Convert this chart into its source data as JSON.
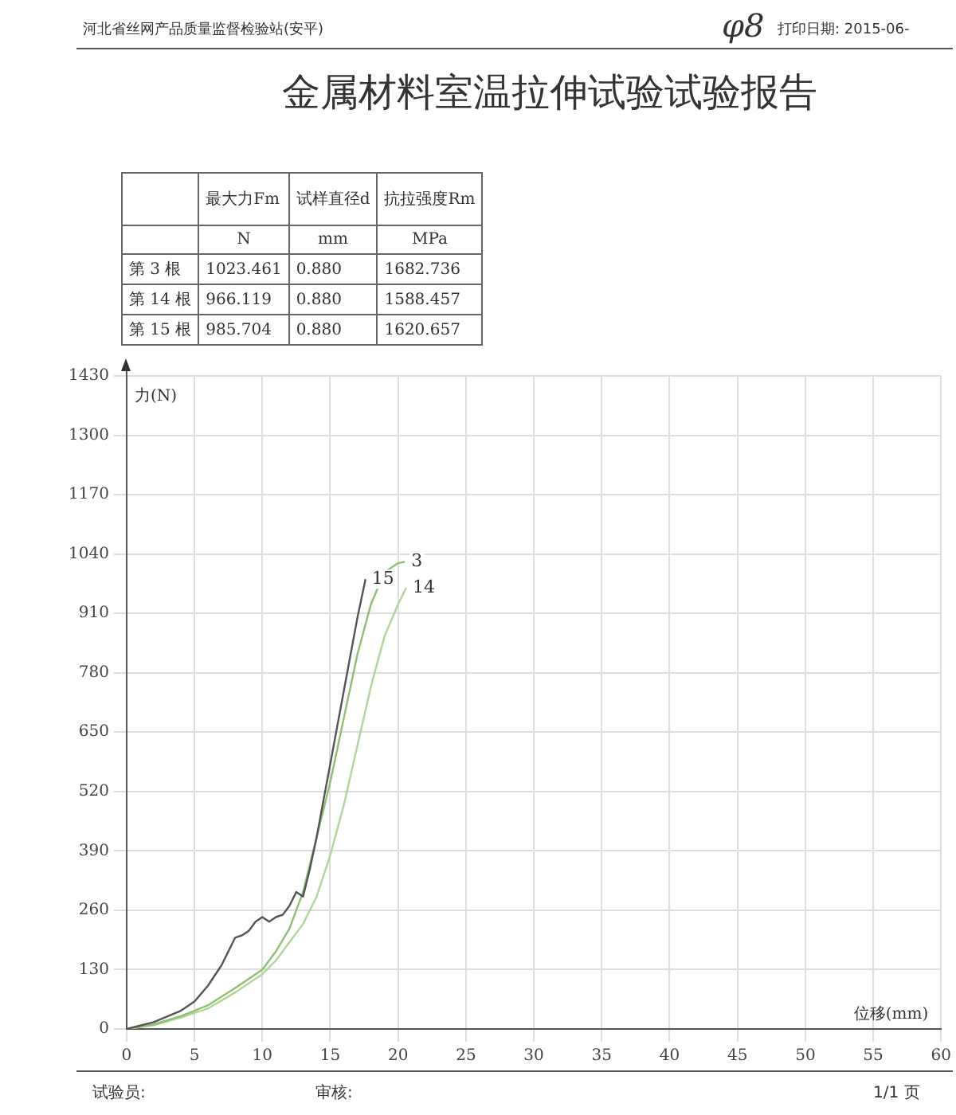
{
  "chart_data": {
    "type": "line",
    "title": "金属材料室温拉伸试验试验报告",
    "xlabel": "位移(mm)",
    "ylabel": "力(N)",
    "annotations": [
      "河北省丝网产品质量监督检验站(安平)",
      "φ8",
      "打印日期: 2015-06-",
      "最大力Fm",
      "试样直径d",
      "抗拉强度Rm",
      "N",
      "mm",
      "MPa",
      "第 3 根",
      "1023.461",
      "0.880",
      "1682.736",
      "第 14 根",
      "966.119",
      "0.880",
      "1588.457",
      "第 15 根",
      "985.704",
      "0.880",
      "1620.657",
      "试验员:",
      "审核:",
      "1/1 页"
    ],
    "xlim": [
      0,
      60
    ],
    "xticks": [
      0,
      5,
      10,
      15,
      20,
      25,
      30,
      35,
      40,
      45,
      50,
      55,
      60
    ],
    "ylim": [
      0,
      1430
    ],
    "yticks": [
      0,
      130,
      260,
      390,
      520,
      650,
      780,
      910,
      1040,
      1170,
      1300,
      1430
    ],
    "grid": true,
    "legend": false,
    "marker": "none",
    "line_style": "solid",
    "series": [
      {
        "name": "15",
        "color": "#555555",
        "x": [
          0,
          2,
          4,
          5,
          6,
          7,
          7.5,
          8,
          8.5,
          9,
          9.5,
          10,
          10.5,
          11,
          11.5,
          12,
          12.5,
          13,
          13.5,
          14,
          14.5,
          15,
          15.5,
          16,
          16.5,
          17,
          17.6
        ],
        "values": [
          0,
          15,
          40,
          60,
          95,
          140,
          170,
          200,
          205,
          215,
          235,
          245,
          235,
          245,
          250,
          270,
          300,
          290,
          350,
          420,
          500,
          580,
          660,
          740,
          820,
          900,
          985
        ]
      },
      {
        "name": "3",
        "color": "#8fbf6f",
        "x": [
          0,
          2,
          4,
          5,
          6,
          8,
          10,
          11,
          12,
          13,
          14,
          15,
          16,
          17,
          18,
          19,
          20,
          20.5
        ],
        "values": [
          0,
          10,
          28,
          40,
          52,
          90,
          130,
          170,
          220,
          300,
          420,
          540,
          680,
          820,
          930,
          1000,
          1020,
          1023
        ]
      },
      {
        "name": "14",
        "color": "#b0d49a",
        "x": [
          0,
          2,
          4,
          5,
          6,
          8,
          10,
          11,
          12,
          13,
          14,
          15,
          16,
          17,
          18,
          19,
          20,
          20.6
        ],
        "values": [
          0,
          8,
          25,
          35,
          45,
          80,
          120,
          150,
          190,
          230,
          290,
          380,
          490,
          620,
          750,
          860,
          930,
          966
        ]
      }
    ]
  }
}
